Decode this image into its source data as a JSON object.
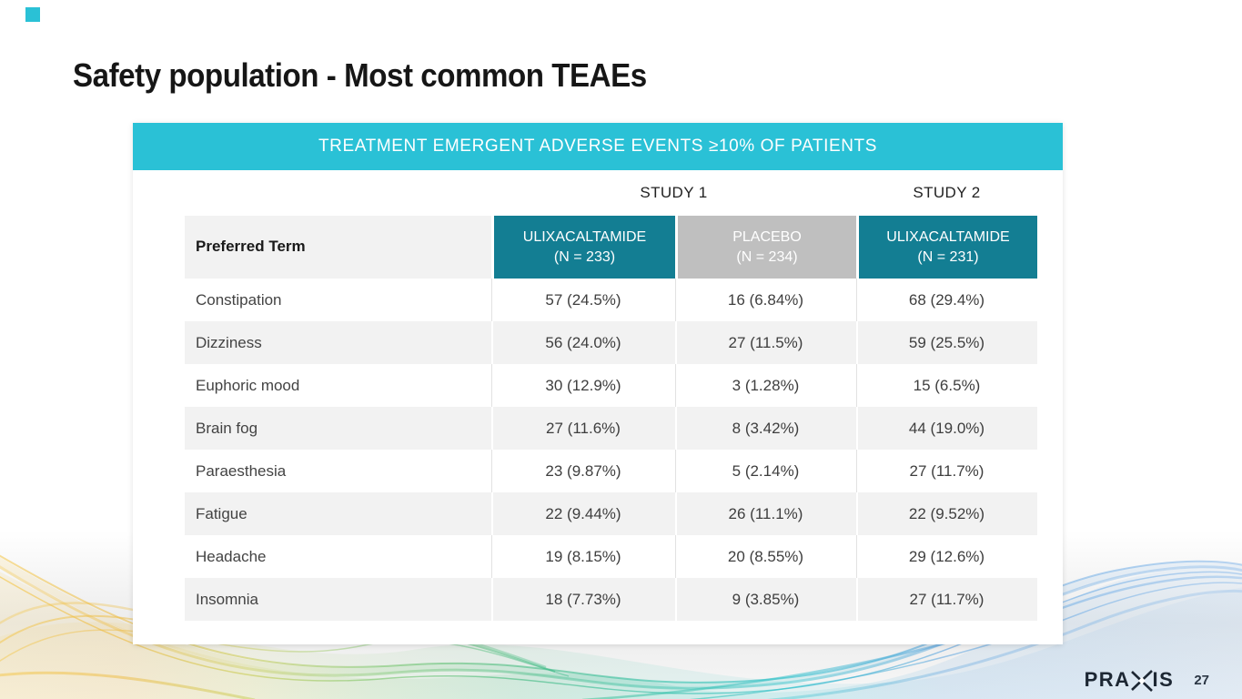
{
  "slide": {
    "title": "Safety population - Most common TEAEs",
    "page_number": "27",
    "logo_left": "PRA",
    "logo_right": "IS"
  },
  "table": {
    "banner": "TREATMENT EMERGENT ADVERSE EVENTS ≥10% OF PATIENTS",
    "study_groups": [
      "STUDY 1",
      "STUDY 2"
    ],
    "columns": [
      {
        "label": "Preferred Term",
        "sub": ""
      },
      {
        "label": "ULIXACALTAMIDE",
        "sub": "(N = 233)"
      },
      {
        "label": "PLACEBO",
        "sub": "(N = 234)"
      },
      {
        "label": "ULIXACALTAMIDE",
        "sub": "(N = 231)"
      }
    ],
    "rows": [
      {
        "term": "Constipation",
        "values": [
          "57 (24.5%)",
          "16 (6.84%)",
          "68 (29.4%)"
        ]
      },
      {
        "term": "Dizziness",
        "values": [
          "56 (24.0%)",
          "27 (11.5%)",
          "59 (25.5%)"
        ]
      },
      {
        "term": "Euphoric mood",
        "values": [
          "30 (12.9%)",
          "3 (1.28%)",
          "15 (6.5%)"
        ]
      },
      {
        "term": "Brain fog",
        "values": [
          "27 (11.6%)",
          "8 (3.42%)",
          "44 (19.0%)"
        ]
      },
      {
        "term": "Paraesthesia",
        "values": [
          "23 (9.87%)",
          "5 (2.14%)",
          "27 (11.7%)"
        ]
      },
      {
        "term": "Fatigue",
        "values": [
          "22 (9.44%)",
          "26 (11.1%)",
          "22 (9.52%)"
        ]
      },
      {
        "term": "Headache",
        "values": [
          "19 (8.15%)",
          "20 (8.55%)",
          "29 (12.6%)"
        ]
      },
      {
        "term": "Insomnia",
        "values": [
          "18 (7.73%)",
          "9 (3.85%)",
          "27 (11.7%)"
        ]
      }
    ]
  },
  "colors": {
    "banner_teal": "#2AC1D6",
    "header_teal": "#137E93",
    "header_gray": "#BFBFBF",
    "row_alt": "#F2F2F2",
    "logo_navy": "#1D2733",
    "wave_yellow": "#F2C94C",
    "wave_green": "#3FB97D",
    "wave_teal": "#2BBFA9",
    "wave_blue": "#59A2DE"
  }
}
